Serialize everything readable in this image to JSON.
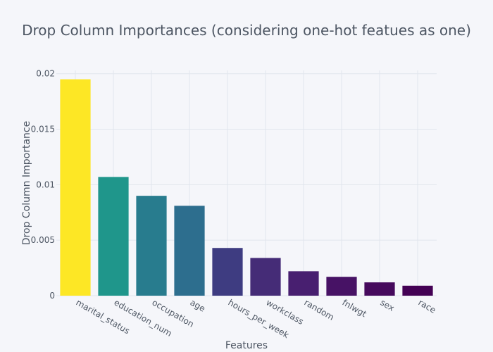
{
  "chart_data": {
    "type": "bar",
    "title": "Drop Column Importances (considering one-hot featues as one)",
    "xlabel": "Features",
    "ylabel": "Drop Column Importance",
    "categories": [
      "marital_status",
      "education_num",
      "occupation",
      "age",
      "hours_per_week",
      "workclass",
      "random",
      "fnlwgt",
      "sex",
      "race"
    ],
    "values": [
      0.0195,
      0.0107,
      0.009,
      0.0081,
      0.0043,
      0.0034,
      0.0022,
      0.0017,
      0.0012,
      0.0009
    ],
    "colors": [
      "#fde725",
      "#1f968b",
      "#287c8e",
      "#2d6e8e",
      "#3e3c81",
      "#452c77",
      "#481f70",
      "#471265",
      "#460a5d",
      "#440154"
    ],
    "ylim": [
      0,
      0.0203
    ],
    "yticks": [
      0,
      0.005,
      0.01,
      0.015,
      0.02
    ],
    "ytick_labels": [
      "0",
      "0.005",
      "0.01",
      "0.015",
      "0.02"
    ],
    "grid": true,
    "background": "#f5f6fa",
    "grid_color": "#e1e5ed",
    "text_color": "#4d5663"
  }
}
